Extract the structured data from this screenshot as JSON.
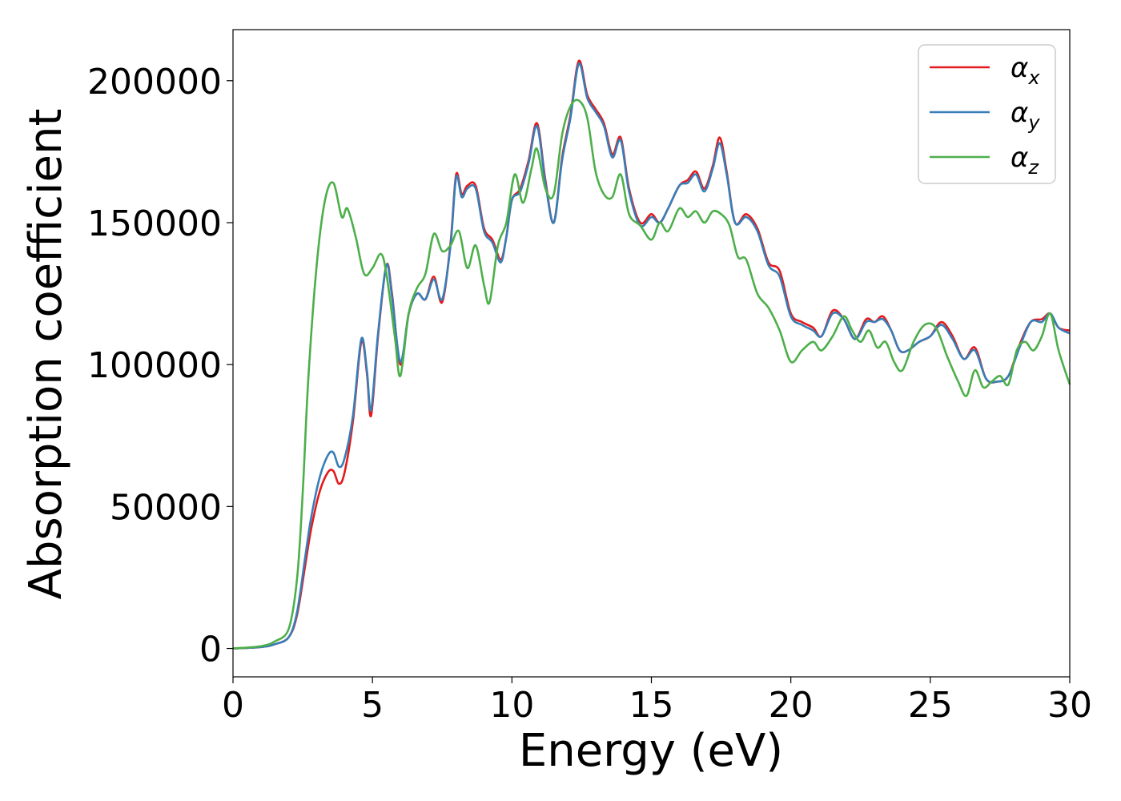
{
  "chart_data": {
    "type": "line",
    "xlabel": "Energy (eV)",
    "ylabel": "Absorption coefficient",
    "xlim": [
      0,
      30
    ],
    "ylim": [
      -10000,
      218000
    ],
    "xticks": [
      "0",
      "5",
      "10",
      "15",
      "20",
      "25",
      "30"
    ],
    "yticks": [
      "0",
      "50000",
      "100000",
      "150000",
      "200000"
    ],
    "grid": false,
    "legend_position": "top-right",
    "series": [
      {
        "name": "α",
        "subscript": "x",
        "color": "#e41a1c",
        "x": [
          0,
          1,
          1.5,
          2,
          2.3,
          2.6,
          2.8,
          3.1,
          3.4,
          3.6,
          3.8,
          4.0,
          4.3,
          4.6,
          4.8,
          4.95,
          5.2,
          5.5,
          5.7,
          6.0,
          6.3,
          6.6,
          6.9,
          7.2,
          7.5,
          7.8,
          8.0,
          8.2,
          8.4,
          8.7,
          9.0,
          9.3,
          9.6,
          9.8,
          10.0,
          10.3,
          10.6,
          10.9,
          11.2,
          11.5,
          11.8,
          12.1,
          12.4,
          12.7,
          13.0,
          13.3,
          13.6,
          13.9,
          14.2,
          14.6,
          15.0,
          15.3,
          15.6,
          16.0,
          16.3,
          16.6,
          16.9,
          17.2,
          17.45,
          17.7,
          18.0,
          18.4,
          18.8,
          19.2,
          19.6,
          20.0,
          20.4,
          20.8,
          21.1,
          21.5,
          21.9,
          22.3,
          22.7,
          23.0,
          23.3,
          23.6,
          23.9,
          24.2,
          24.6,
          25.0,
          25.4,
          25.8,
          26.2,
          26.6,
          27.0,
          27.4,
          27.8,
          28.2,
          28.6,
          29.0,
          29.3,
          29.6,
          30
        ],
        "y": [
          0,
          500,
          1500,
          4000,
          12000,
          30000,
          42000,
          55000,
          62000,
          62500,
          58000,
          62000,
          80000,
          108000,
          97000,
          82000,
          110000,
          135000,
          125000,
          100000,
          118000,
          125000,
          123000,
          131000,
          122000,
          143000,
          167000,
          160000,
          163000,
          163000,
          148000,
          144000,
          137000,
          145000,
          158000,
          162000,
          172000,
          185000,
          165000,
          150000,
          173000,
          188000,
          207000,
          195000,
          190000,
          185000,
          174000,
          180000,
          162000,
          150000,
          153000,
          150000,
          155000,
          163000,
          165000,
          168000,
          162000,
          170000,
          180000,
          168000,
          150000,
          153000,
          148000,
          136000,
          133000,
          118000,
          115000,
          113000,
          110000,
          119000,
          116000,
          109000,
          116000,
          115000,
          117000,
          112000,
          105000,
          105000,
          108000,
          110000,
          115000,
          110000,
          102000,
          106000,
          95000,
          94000,
          96000,
          107000,
          115000,
          116000,
          118000,
          113000,
          112000
        ]
      },
      {
        "name": "α",
        "subscript": "y",
        "color": "#377eb8",
        "x": [
          0,
          1,
          1.5,
          2,
          2.3,
          2.6,
          2.8,
          3.1,
          3.4,
          3.6,
          3.8,
          4.0,
          4.3,
          4.6,
          4.8,
          4.95,
          5.2,
          5.5,
          5.7,
          6.0,
          6.3,
          6.6,
          6.9,
          7.2,
          7.5,
          7.8,
          8.0,
          8.2,
          8.4,
          8.7,
          9.0,
          9.3,
          9.6,
          9.8,
          10.0,
          10.3,
          10.6,
          10.9,
          11.2,
          11.5,
          11.8,
          12.1,
          12.4,
          12.7,
          13.0,
          13.3,
          13.6,
          13.9,
          14.2,
          14.6,
          15.0,
          15.3,
          15.6,
          16.0,
          16.3,
          16.6,
          16.9,
          17.2,
          17.45,
          17.7,
          18.0,
          18.4,
          18.8,
          19.2,
          19.6,
          20.0,
          20.4,
          20.8,
          21.1,
          21.5,
          21.9,
          22.3,
          22.7,
          23.0,
          23.3,
          23.6,
          23.9,
          24.2,
          24.6,
          25.0,
          25.4,
          25.8,
          26.2,
          26.6,
          27.0,
          27.4,
          27.8,
          28.2,
          28.6,
          29.0,
          29.3,
          29.6,
          30
        ],
        "y": [
          0,
          500,
          1500,
          4000,
          13000,
          33000,
          46000,
          60000,
          68000,
          69000,
          64000,
          67000,
          82000,
          109000,
          98000,
          84000,
          111000,
          135000,
          124000,
          101000,
          118000,
          125000,
          123000,
          130000,
          123000,
          142000,
          166000,
          159000,
          162000,
          162000,
          147000,
          143000,
          136000,
          145000,
          158000,
          161000,
          171000,
          184000,
          164000,
          150000,
          172000,
          187000,
          206000,
          194000,
          189000,
          184000,
          173000,
          179000,
          161000,
          149000,
          152000,
          150000,
          155000,
          163000,
          164000,
          167000,
          161000,
          169000,
          178000,
          167000,
          150000,
          152000,
          147000,
          135000,
          131000,
          117000,
          114000,
          112000,
          110000,
          118000,
          116000,
          109000,
          115000,
          115000,
          116000,
          112000,
          105000,
          105000,
          108000,
          110000,
          114000,
          109000,
          102000,
          105000,
          95000,
          94000,
          96000,
          106000,
          115000,
          115000,
          118000,
          113000,
          111000
        ]
      },
      {
        "name": "α",
        "subscript": "z",
        "color": "#4daf4a",
        "x": [
          0,
          1,
          1.5,
          2,
          2.3,
          2.5,
          2.7,
          3.0,
          3.3,
          3.6,
          3.9,
          4.1,
          4.4,
          4.7,
          5.0,
          5.3,
          5.5,
          5.8,
          6.0,
          6.3,
          6.6,
          6.9,
          7.2,
          7.5,
          7.8,
          8.1,
          8.4,
          8.7,
          9.0,
          9.2,
          9.5,
          9.8,
          10.1,
          10.4,
          10.7,
          10.9,
          11.2,
          11.5,
          11.8,
          12.1,
          12.4,
          12.7,
          13.0,
          13.3,
          13.6,
          13.9,
          14.2,
          14.6,
          15.0,
          15.3,
          15.6,
          16.0,
          16.3,
          16.6,
          16.9,
          17.2,
          17.5,
          17.8,
          18.1,
          18.4,
          18.8,
          19.2,
          19.6,
          20.0,
          20.4,
          20.8,
          21.1,
          21.5,
          21.9,
          22.2,
          22.5,
          22.8,
          23.1,
          23.4,
          23.7,
          24.0,
          24.4,
          24.8,
          25.2,
          25.6,
          26.0,
          26.3,
          26.6,
          26.9,
          27.2,
          27.5,
          27.8,
          28.1,
          28.4,
          28.7,
          29.0,
          29.3,
          29.6,
          30
        ],
        "y": [
          0,
          800,
          2500,
          7000,
          25000,
          55000,
          95000,
          135000,
          158000,
          164000,
          152000,
          155000,
          145000,
          132000,
          134000,
          139000,
          132000,
          110000,
          96000,
          118000,
          127000,
          132000,
          146000,
          140000,
          142000,
          147000,
          134000,
          142000,
          128000,
          122000,
          142000,
          150000,
          167000,
          157000,
          169000,
          176000,
          162000,
          160000,
          181000,
          191000,
          193000,
          187000,
          168000,
          160000,
          159000,
          167000,
          153000,
          149000,
          144000,
          150000,
          147000,
          155000,
          152000,
          154000,
          150000,
          154000,
          153000,
          149000,
          138000,
          137000,
          125000,
          120000,
          112000,
          101000,
          105000,
          108000,
          105000,
          110000,
          117000,
          112000,
          108000,
          112000,
          106000,
          108000,
          101000,
          98000,
          108000,
          114000,
          113000,
          103000,
          94000,
          89000,
          98000,
          92000,
          94000,
          96000,
          93000,
          105000,
          108000,
          105000,
          110000,
          118000,
          105000,
          93000
        ]
      }
    ]
  }
}
